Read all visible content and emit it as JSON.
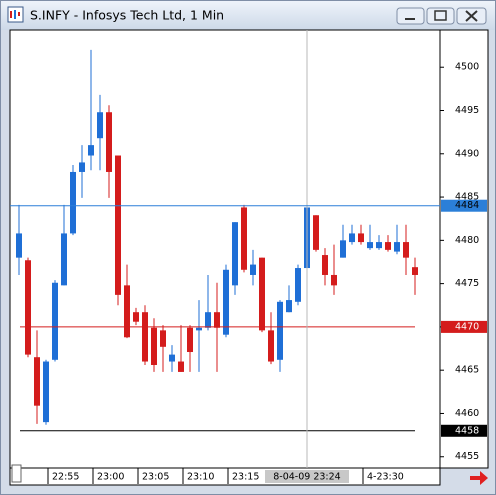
{
  "window_title": "S.INFY - Infosys Tech Ltd, 1 Min",
  "chart_data": {
    "type": "candlestick",
    "categories": [
      null,
      null,
      null,
      "22:55",
      null,
      null,
      null,
      null,
      "23:00",
      null,
      null,
      null,
      null,
      "23:05",
      null,
      null,
      null,
      null,
      "23:10",
      null,
      null,
      null,
      null,
      "23:15",
      null,
      null,
      null,
      null,
      null,
      null,
      null,
      null,
      null,
      null,
      null,
      null,
      null,
      null,
      "4-23:30",
      null,
      null,
      null,
      null,
      null,
      null
    ],
    "open": [
      4478.0,
      4477.7,
      4466.5,
      4459.0,
      4466.2,
      4474.8,
      4480.8,
      4487.9,
      4489.8,
      4491.8,
      4494.8,
      4489.8,
      4474.8,
      4471.7,
      4471.7,
      4469.9,
      4469.6,
      4466.0,
      4466.0,
      4469.9,
      4469.6,
      4469.9,
      4471.7,
      4469.1,
      4474.8,
      4483.8,
      4476.0,
      4478.0,
      4469.6,
      4466.2,
      4471.7,
      4472.9,
      4476.8,
      4482.9,
      4478.3,
      4476.0,
      4478.0,
      4479.8,
      4480.8,
      4479.1,
      4479.1,
      4479.8,
      4478.7,
      4479.8,
      4476.9
    ],
    "high": [
      4484.1,
      4478.0,
      4469.6,
      4466.2,
      4475.4,
      4484.1,
      4488.7,
      4491.0,
      4502.0,
      4496.8,
      4495.6,
      4489.8,
      4477.2,
      4472.2,
      4472.5,
      4471.0,
      4470.2,
      4467.9,
      4470.2,
      4470.2,
      4473.1,
      4476.0,
      4475.1,
      4477.2,
      4482.1,
      4484.1,
      4478.9,
      4478.0,
      4471.7,
      4473.1,
      4474.8,
      4477.2,
      4484.1,
      4482.9,
      4479.1,
      4479.5,
      4481.8,
      4481.8,
      4481.8,
      4481.8,
      4480.6,
      4480.6,
      4481.8,
      4481.8,
      4478.0
    ],
    "low": [
      4476.0,
      4466.5,
      4458.8,
      4458.7,
      4466.0,
      4474.8,
      4480.6,
      4484.9,
      4488.1,
      4488.1,
      4484.9,
      4472.5,
      4468.7,
      4470.2,
      4465.6,
      4464.8,
      4464.8,
      4464.8,
      4464.8,
      4464.8,
      4464.8,
      4469.6,
      4464.8,
      4468.8,
      4473.7,
      4476.3,
      4474.8,
      4469.4,
      4465.7,
      4464.8,
      4471.7,
      4472.5,
      4476.6,
      4478.7,
      4474.8,
      4473.7,
      4478.0,
      4479.5,
      4479.5,
      4478.9,
      4478.9,
      4478.7,
      4478.4,
      4476.0,
      4473.7
    ],
    "close": [
      4480.8,
      4466.8,
      4460.9,
      4466.0,
      4475.1,
      4480.8,
      4487.9,
      4489.0,
      4491.0,
      4494.8,
      4487.9,
      4473.7,
      4468.8,
      4470.6,
      4466.0,
      4465.6,
      4467.7,
      4466.8,
      4464.8,
      4467.1,
      4469.9,
      4471.7,
      4469.9,
      4476.6,
      4482.1,
      4476.6,
      4477.2,
      4469.6,
      4466.0,
      4472.9,
      4473.1,
      4476.8,
      4483.8,
      4478.9,
      4476.0,
      4474.8,
      4480.0,
      4480.8,
      4479.8,
      4479.8,
      4479.8,
      4478.9,
      4479.8,
      4478.0,
      4476.0
    ],
    "up_color": "#1f6fd6",
    "down_color": "#d41c1c",
    "ylim": [
      4453.7,
      4504.3
    ],
    "yticks": [
      4455,
      4460,
      4465,
      4470,
      4475,
      4480,
      4485,
      4490,
      4495,
      4500
    ],
    "crosshair": {
      "index": 32,
      "x_label": "8-04-09 23:24",
      "value": 4484,
      "color": "#2b7fd8"
    },
    "hlines": [
      {
        "value": 4470,
        "color": "#d41c1c",
        "label_color": "#ffffff"
      },
      {
        "value": 4458,
        "color": "#000000",
        "label_color": "#ffffff"
      }
    ]
  }
}
